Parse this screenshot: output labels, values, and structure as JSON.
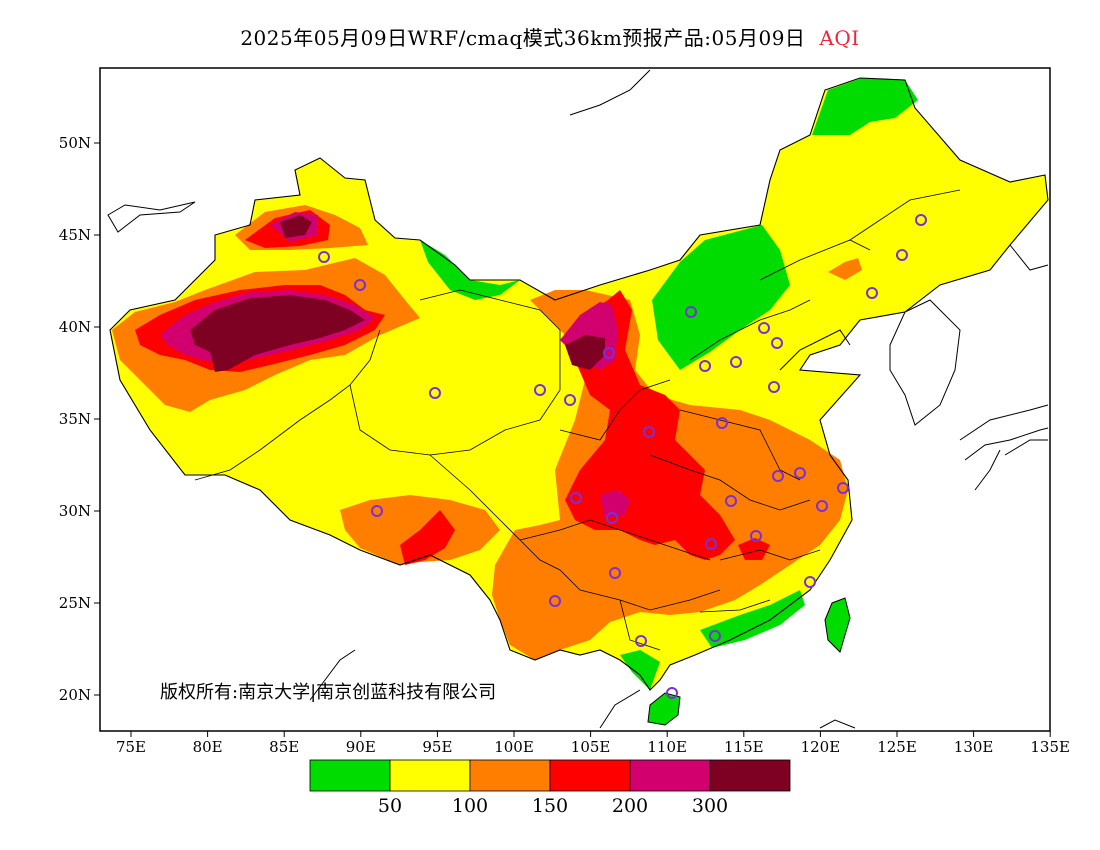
{
  "title": {
    "main": "2025年05月09日WRF/cmaq模式36km预报产品:05月09日",
    "variable": "AQI",
    "variable_color": "#e8283c"
  },
  "axes": {
    "x_ticks": [
      "75E",
      "80E",
      "85E",
      "90E",
      "95E",
      "100E",
      "105E",
      "110E",
      "115E",
      "120E",
      "125E",
      "130E",
      "135E"
    ],
    "y_ticks": [
      "20N",
      "25N",
      "30N",
      "35N",
      "40N",
      "45N",
      "50N"
    ]
  },
  "legend": {
    "colors": [
      "#00dc00",
      "#ffff00",
      "#ff7e00",
      "#ff0000",
      "#d2006e",
      "#7e0023"
    ],
    "labels": [
      "50",
      "100",
      "150",
      "200",
      "300"
    ]
  },
  "copyright": "版权所有:南京大学|南京创蓝科技有限公司",
  "site_marker_color": "#7a2fd9"
}
